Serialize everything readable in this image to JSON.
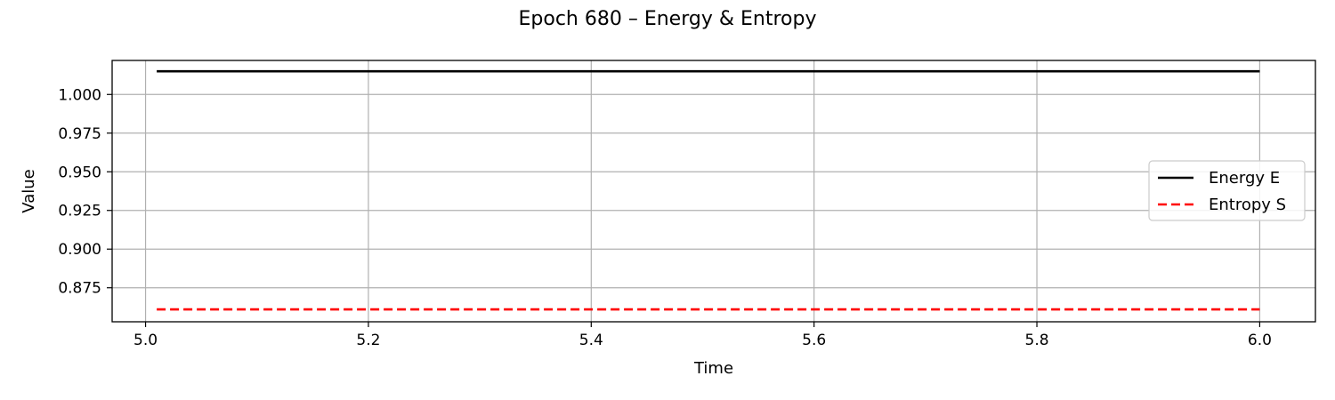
{
  "chart_data": {
    "type": "line",
    "title": "Epoch 680 – Energy & Entropy",
    "xlabel": "Time",
    "ylabel": "Value",
    "xlim": [
      4.97,
      6.05
    ],
    "ylim": [
      0.853,
      1.022
    ],
    "xticks": [
      5.0,
      5.2,
      5.4,
      5.6,
      5.8,
      6.0
    ],
    "xtick_labels": [
      "5.0",
      "5.2",
      "5.4",
      "5.6",
      "5.8",
      "6.0"
    ],
    "yticks": [
      0.875,
      0.9,
      0.925,
      0.95,
      0.975,
      1.0
    ],
    "ytick_labels": [
      "0.875",
      "0.900",
      "0.925",
      "0.950",
      "0.975",
      "1.000"
    ],
    "grid": true,
    "legend_position": "center-right",
    "series": [
      {
        "name": "Energy E",
        "x": [
          5.01,
          6.0
        ],
        "values": [
          1.015,
          1.015
        ],
        "color": "#000000",
        "style": "solid"
      },
      {
        "name": "Entropy S",
        "x": [
          5.01,
          6.0
        ],
        "values": [
          0.861,
          0.861
        ],
        "color": "#ff0000",
        "style": "dashed"
      }
    ]
  }
}
